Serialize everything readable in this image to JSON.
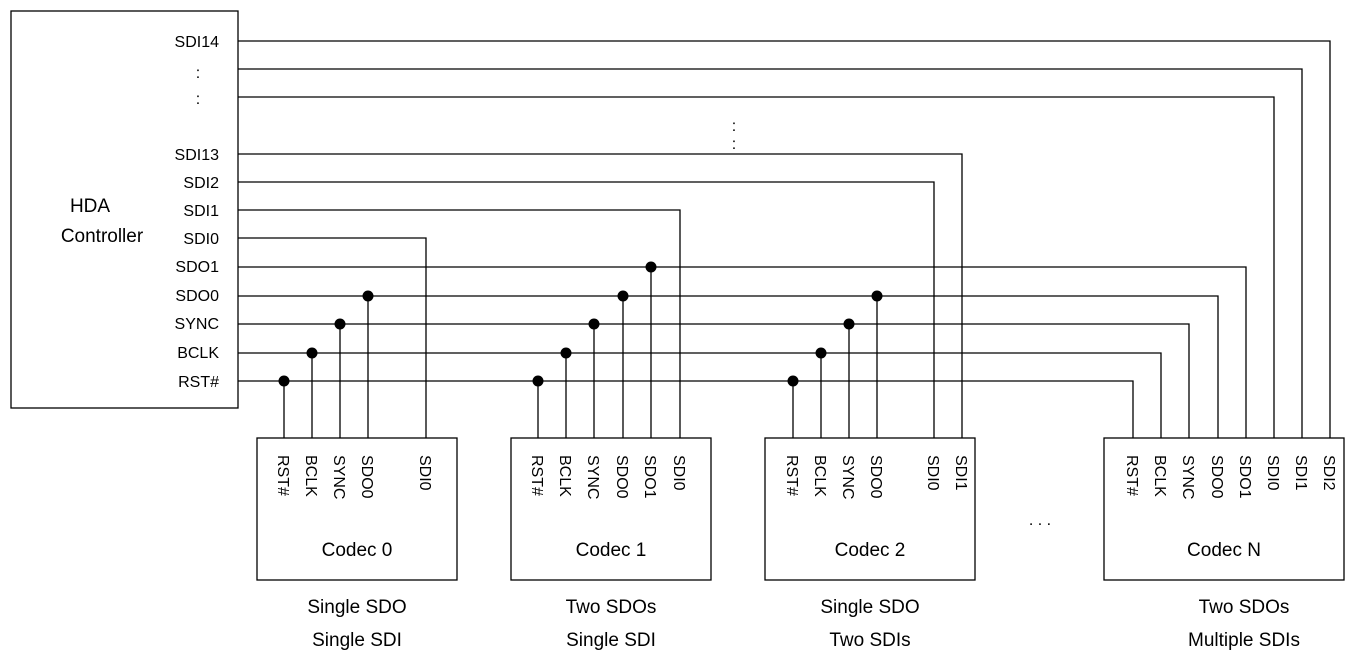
{
  "controller": {
    "title_line1": "HDA",
    "title_line2": "Controller",
    "ports": [
      "SDI14",
      ":",
      ":",
      "SDI13",
      "SDI2",
      "SDI1",
      "SDI0",
      "SDO1",
      "SDO0",
      "SYNC",
      "BCLK",
      "RST#"
    ]
  },
  "ellipsis_mid": ":",
  "ellipsis_codecs": ". . .",
  "codecs": [
    {
      "name": "Codec 0",
      "pins": [
        "RST#",
        "BCLK",
        "SYNC",
        "SDO0",
        "SDI0"
      ],
      "caption1": "Single SDO",
      "caption2": "Single SDI"
    },
    {
      "name": "Codec 1",
      "pins": [
        "RST#",
        "BCLK",
        "SYNC",
        "SDO0",
        "SDO1",
        "SDI0"
      ],
      "caption1": "Two SDOs",
      "caption2": "Single SDI"
    },
    {
      "name": "Codec 2",
      "pins": [
        "RST#",
        "BCLK",
        "SYNC",
        "SDO0",
        "SDI0",
        "SDI1"
      ],
      "caption1": "Single SDO",
      "caption2": "Two SDIs"
    },
    {
      "name": "Codec N",
      "pins": [
        "RST#",
        "BCLK",
        "SYNC",
        "SDO0",
        "SDO1",
        "SDI0",
        "SDI1",
        "SDI2"
      ],
      "caption1": "Two SDOs",
      "caption2": "Multiple SDIs"
    }
  ]
}
